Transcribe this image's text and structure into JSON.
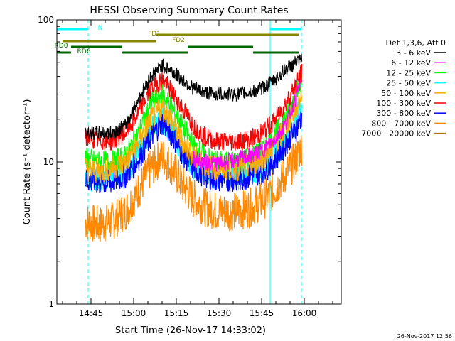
{
  "chart_data": {
    "type": "line",
    "title": "HESSI Observing Summary Count Rates",
    "xlabel": "Start Time (26-Nov-17 14:33:02)",
    "ylabel": "Count Rate (s⁻¹ detector⁻¹)",
    "yscale": "log",
    "ylim": [
      1,
      100
    ],
    "xlim_minutes_after_1433": [
      0,
      100
    ],
    "x_tick_labels": [
      "14:45",
      "15:00",
      "15:15",
      "15:30",
      "15:45",
      "16:00"
    ],
    "y_tick_labels": [
      "1",
      "10",
      "100"
    ],
    "legend_title": "Det 1,3,6, Att 0",
    "legend_position": "right",
    "series": [
      {
        "name": "3 - 6 keV",
        "color": "#000000",
        "x": [
          10,
          15,
          19,
          24,
          28,
          33,
          37,
          40,
          44,
          48,
          52,
          56,
          60,
          64,
          68,
          72,
          76,
          80,
          84,
          86
        ],
        "values": [
          16,
          16,
          16,
          18,
          26,
          40,
          48,
          44,
          38,
          33,
          31,
          30,
          30,
          30,
          31,
          33,
          37,
          44,
          50,
          52
        ]
      },
      {
        "name": "6 - 12 keV",
        "color": "#ff00ff",
        "x": [
          48,
          52,
          56,
          60,
          64,
          68,
          72,
          76,
          80,
          84,
          86
        ],
        "values": [
          10.5,
          10,
          9.8,
          10,
          10.5,
          11,
          12,
          14,
          18,
          28,
          40
        ]
      },
      {
        "name": "12 - 25 keV",
        "color": "#00ff00",
        "x": [
          10,
          15,
          19,
          24,
          28,
          33,
          37,
          40,
          44,
          48,
          52,
          56,
          60,
          64,
          68,
          72,
          76,
          80,
          84,
          86
        ],
        "values": [
          10.5,
          10,
          10,
          11,
          15,
          26,
          30,
          25,
          18,
          13,
          11,
          10,
          10,
          10,
          11,
          12,
          15,
          20,
          30,
          38
        ]
      },
      {
        "name": "25 - 50 keV",
        "color": "#00ffff",
        "x": [
          10,
          15,
          19,
          24,
          28,
          33,
          37,
          40,
          44,
          48,
          52,
          56,
          60,
          64,
          68,
          72,
          76,
          80,
          84,
          86
        ],
        "values": [
          8,
          7.5,
          7.8,
          8.5,
          11,
          17,
          20,
          17,
          12,
          9.5,
          8.5,
          8,
          8,
          8,
          8.5,
          9,
          11,
          14,
          20,
          25
        ]
      },
      {
        "name": "50 - 100 keV",
        "color": "#ffaa00",
        "x": [
          10,
          15,
          19,
          24,
          28,
          33,
          37,
          40,
          44,
          48,
          52,
          56,
          60,
          64,
          68,
          72,
          76,
          80,
          84,
          86
        ],
        "values": [
          9,
          8.5,
          9,
          10,
          13,
          20,
          24,
          20,
          14,
          11,
          9.5,
          9,
          9,
          9,
          9.5,
          10.5,
          13,
          17,
          24,
          30
        ]
      },
      {
        "name": "100 - 300 keV",
        "color": "#ff0000",
        "x": [
          10,
          15,
          19,
          24,
          28,
          33,
          37,
          40,
          44,
          48,
          52,
          56,
          60,
          64,
          68,
          72,
          76,
          80,
          84,
          86
        ],
        "values": [
          15,
          14,
          14,
          16,
          21,
          33,
          38,
          32,
          24,
          18,
          15,
          14,
          14,
          14,
          14.5,
          16,
          19,
          25,
          35,
          42
        ]
      },
      {
        "name": "300 - 800 keV",
        "color": "#0000ff",
        "x": [
          10,
          15,
          19,
          24,
          28,
          33,
          37,
          40,
          44,
          48,
          52,
          56,
          60,
          64,
          68,
          72,
          76,
          80,
          84,
          86
        ],
        "values": [
          7.5,
          7.2,
          7.2,
          8,
          10,
          15,
          19,
          16,
          11.5,
          9,
          8,
          7.5,
          7.5,
          7.5,
          8,
          8.5,
          10,
          13,
          17,
          21
        ]
      },
      {
        "name": "800 - 7000 keV",
        "color": "#ff8800",
        "x": [
          10,
          15,
          19,
          24,
          28,
          33,
          37,
          40,
          44,
          48,
          52,
          56,
          60,
          64,
          68,
          72,
          76,
          80,
          84,
          86
        ],
        "values": [
          3.8,
          3.6,
          3.8,
          4.5,
          6,
          9,
          11,
          9.5,
          7,
          5.5,
          4.8,
          4.5,
          4.5,
          4.5,
          4.8,
          5.3,
          6.2,
          8,
          10.5,
          13
        ]
      },
      {
        "name": "7000 - 20000 keV",
        "color": "#aa7700",
        "x": [],
        "values": []
      }
    ],
    "annotations": [
      {
        "label": "N",
        "color": "#00ffff",
        "segments": [
          [
            0,
            11
          ],
          [
            75,
            86
          ]
        ]
      },
      {
        "label": "FD1",
        "color": "#888800",
        "segments": [
          [
            35,
            85
          ]
        ]
      },
      {
        "label": "FD2",
        "color": "#888800",
        "segments": [
          [
            2,
            35
          ]
        ]
      },
      {
        "label": "RD0",
        "color": "#006600",
        "segments": [
          [
            5,
            23
          ],
          [
            46,
            69
          ]
        ]
      },
      {
        "label": "RD6",
        "color": "#006600",
        "segments": [
          [
            0,
            5
          ],
          [
            23,
            46
          ],
          [
            69,
            85
          ]
        ]
      }
    ],
    "vertical_lines": [
      {
        "color": "#00ffff",
        "style": "solid",
        "x": 75
      },
      {
        "color": "#00ffff",
        "style": "dashed",
        "x": 11
      },
      {
        "color": "#00ffff",
        "style": "dashed",
        "x": 86
      }
    ]
  },
  "timestamp": "26-Nov-2017 12:56"
}
